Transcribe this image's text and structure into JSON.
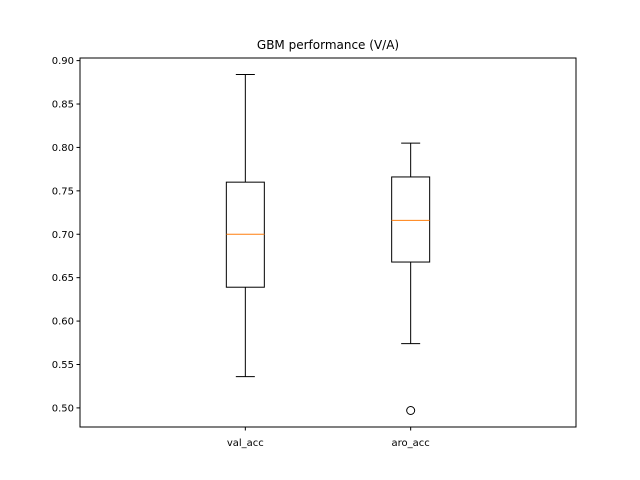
{
  "chart_data": {
    "type": "box",
    "title": "GBM performance (V/A)",
    "xlabel": "",
    "ylabel": "",
    "categories": [
      "val_acc",
      "aro_acc"
    ],
    "boxes": [
      {
        "name": "val_acc",
        "whisker_low": 0.536,
        "q1": 0.639,
        "median": 0.7,
        "q3": 0.76,
        "whisker_high": 0.884,
        "outliers": []
      },
      {
        "name": "aro_acc",
        "whisker_low": 0.574,
        "q1": 0.668,
        "median": 0.716,
        "q3": 0.766,
        "whisker_high": 0.805,
        "outliers": [
          0.497
        ]
      }
    ],
    "ylim": [
      0.478,
      0.903
    ],
    "yticks": [
      "0.50",
      "0.55",
      "0.60",
      "0.65",
      "0.70",
      "0.75",
      "0.80",
      "0.85",
      "0.90"
    ],
    "grid": false,
    "colors": {
      "box": "#000000",
      "median": "#ff7f0e",
      "outlier": "#000000"
    }
  }
}
